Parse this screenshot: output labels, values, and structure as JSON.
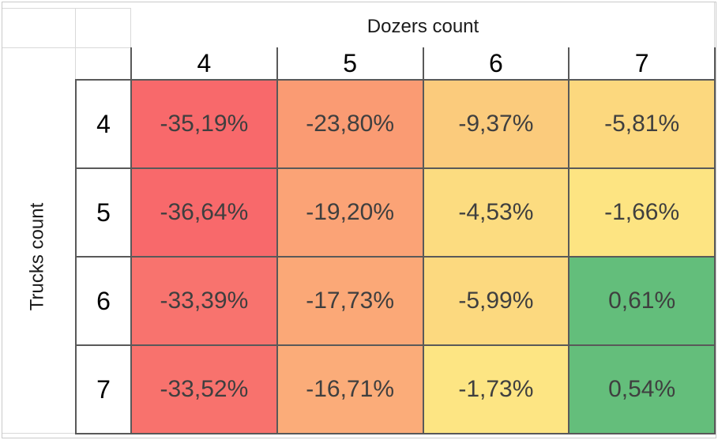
{
  "sheet": {
    "col_group_title": "Dozers count",
    "row_group_title": "Trucks count",
    "col_headers": [
      "4",
      "5",
      "6",
      "7"
    ],
    "rows": [
      {
        "header": "4",
        "cells": [
          {
            "label": "-35,19%",
            "bg": "#F8696B"
          },
          {
            "label": "-23,80%",
            "bg": "#FA9B73"
          },
          {
            "label": "-9,37%",
            "bg": "#FBCB7C"
          },
          {
            "label": "-5,81%",
            "bg": "#FCD87E"
          }
        ]
      },
      {
        "header": "5",
        "cells": [
          {
            "label": "-36,64%",
            "bg": "#F8696B"
          },
          {
            "label": "-19,20%",
            "bg": "#FBA376"
          },
          {
            "label": "-4,53%",
            "bg": "#FCDC80"
          },
          {
            "label": "-1,66%",
            "bg": "#FDE482"
          }
        ]
      },
      {
        "header": "6",
        "cells": [
          {
            "label": "-33,39%",
            "bg": "#F8736E"
          },
          {
            "label": "-17,73%",
            "bg": "#FBA877"
          },
          {
            "label": "-5,99%",
            "bg": "#FCD97F"
          },
          {
            "label": "0,61%",
            "bg": "#63BE7B"
          }
        ]
      },
      {
        "header": "7",
        "cells": [
          {
            "label": "-33,52%",
            "bg": "#F8726D"
          },
          {
            "label": "-16,71%",
            "bg": "#FBAC79"
          },
          {
            "label": "-1,73%",
            "bg": "#FDE583"
          },
          {
            "label": "0,54%",
            "bg": "#64BE7B"
          }
        ]
      }
    ]
  },
  "colors": {
    "grid_dark": "#595959",
    "grid_light": "#D9D9D9",
    "frame": "#C9C9C9",
    "value_text": "#3F3F3F",
    "header_text": "#000000",
    "scale_min": "#F8696B",
    "scale_mid": "#FFEB84",
    "scale_max": "#63BE7B"
  },
  "chart_data": {
    "type": "heatmap",
    "title": "",
    "x_label": "Dozers count",
    "y_label": "Trucks count",
    "x_categories": [
      4,
      5,
      6,
      7
    ],
    "y_categories": [
      4,
      5,
      6,
      7
    ],
    "values_percent": [
      [
        -35.19,
        -23.8,
        -9.37,
        -5.81
      ],
      [
        -36.64,
        -19.2,
        -4.53,
        -1.66
      ],
      [
        -33.39,
        -17.73,
        -5.99,
        0.61
      ],
      [
        -33.52,
        -16.71,
        -1.73,
        0.54
      ]
    ],
    "cell_labels": [
      [
        "-35,19%",
        "-23,80%",
        "-9,37%",
        "-5,81%"
      ],
      [
        "-36,64%",
        "-19,20%",
        "-4,53%",
        "-1,66%"
      ],
      [
        "-33,39%",
        "-17,73%",
        "-5,99%",
        "0,61%"
      ],
      [
        "-33,52%",
        "-16,71%",
        "-1,73%",
        "0,54%"
      ]
    ],
    "colorscale": {
      "min_color": "#F8696B",
      "mid_color": "#FFEB84",
      "max_color": "#63BE7B"
    },
    "decimal_separator": ",",
    "grid": true,
    "legend": false
  }
}
